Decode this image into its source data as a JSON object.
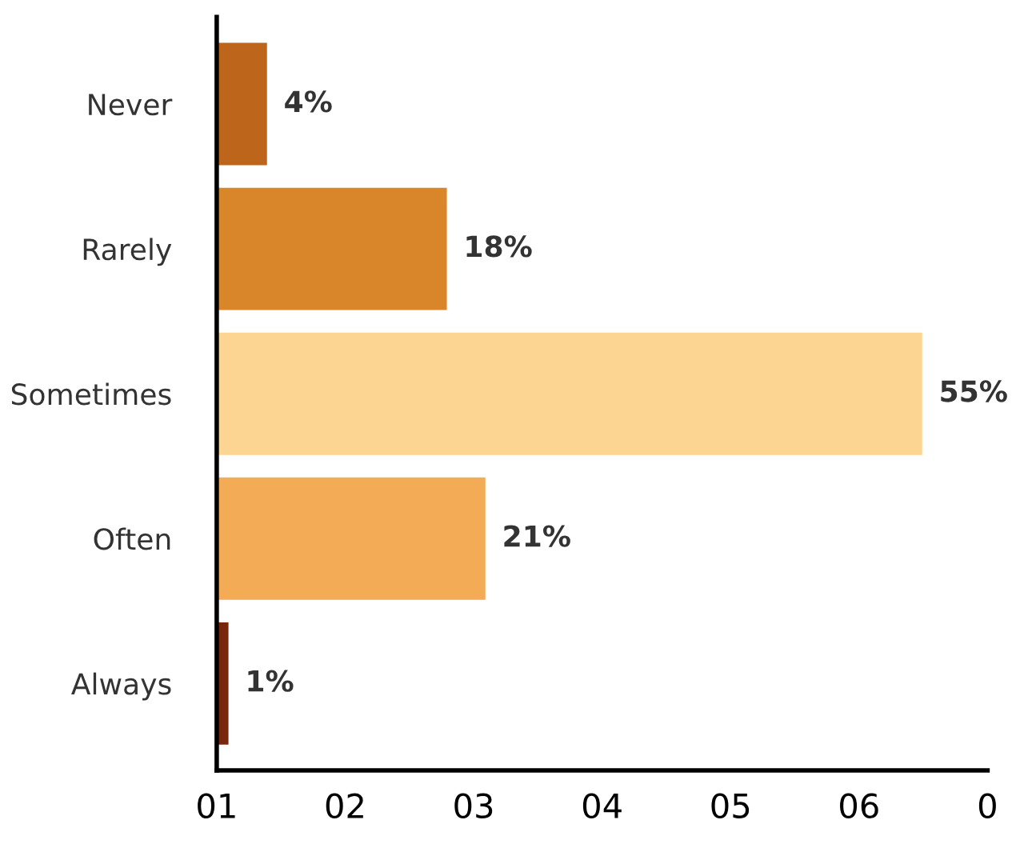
{
  "chart_data": {
    "type": "bar",
    "orientation": "horizontal",
    "categories": [
      "Never",
      "Rarely",
      "Sometimes",
      "Often",
      "Always"
    ],
    "values": [
      4,
      18,
      55,
      21,
      1
    ],
    "value_labels": [
      "4%",
      "18%",
      "55%",
      "21%",
      "1%"
    ],
    "colors": [
      "#bd651b",
      "#d9852a",
      "#fcd592",
      "#f4ab55",
      "#78260d"
    ],
    "xlim": [
      0,
      60
    ],
    "annotations": [
      "01",
      "02",
      "03",
      "04",
      "05",
      "06",
      "0"
    ],
    "grid": false,
    "legend": false
  }
}
